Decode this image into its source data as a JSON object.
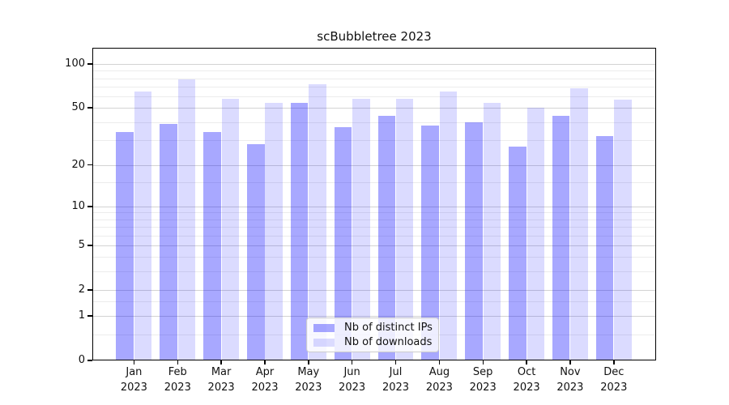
{
  "title": "scBubbletree 2023",
  "legend": {
    "items": [
      {
        "label": "Nb of distinct IPs",
        "color": "rgba(0,0,255,0.34)"
      },
      {
        "label": "Nb of downloads",
        "color": "rgba(0,0,255,0.14)"
      }
    ],
    "position": "lower center"
  },
  "chart_data": {
    "type": "bar",
    "title": "scBubbletree 2023",
    "categories": [
      "Jan",
      "Feb",
      "Mar",
      "Apr",
      "May",
      "Jun",
      "Jul",
      "Aug",
      "Sep",
      "Oct",
      "Nov",
      "Dec"
    ],
    "year_label": "2023",
    "series": [
      {
        "name": "Nb of distinct IPs",
        "color": "rgba(0,0,255,0.34)",
        "values": [
          34,
          39,
          34,
          28,
          54,
          37,
          44,
          38,
          40,
          27,
          44,
          32
        ]
      },
      {
        "name": "Nb of downloads",
        "color": "rgba(0,0,255,0.14)",
        "values": [
          65,
          79,
          58,
          54,
          73,
          58,
          58,
          65,
          54,
          50,
          68,
          57
        ]
      }
    ],
    "xlabel": "",
    "ylabel": "",
    "yscale": "log1p",
    "yticks": [
      0,
      1,
      2,
      5,
      10,
      20,
      50,
      100
    ],
    "minor_yticks": [
      0.5,
      1.5,
      3,
      4,
      6,
      7,
      8,
      9,
      15,
      30,
      40,
      60,
      70,
      80,
      90
    ],
    "ylim": [
      0,
      130
    ],
    "grid": true,
    "legend_position": "lower center"
  }
}
